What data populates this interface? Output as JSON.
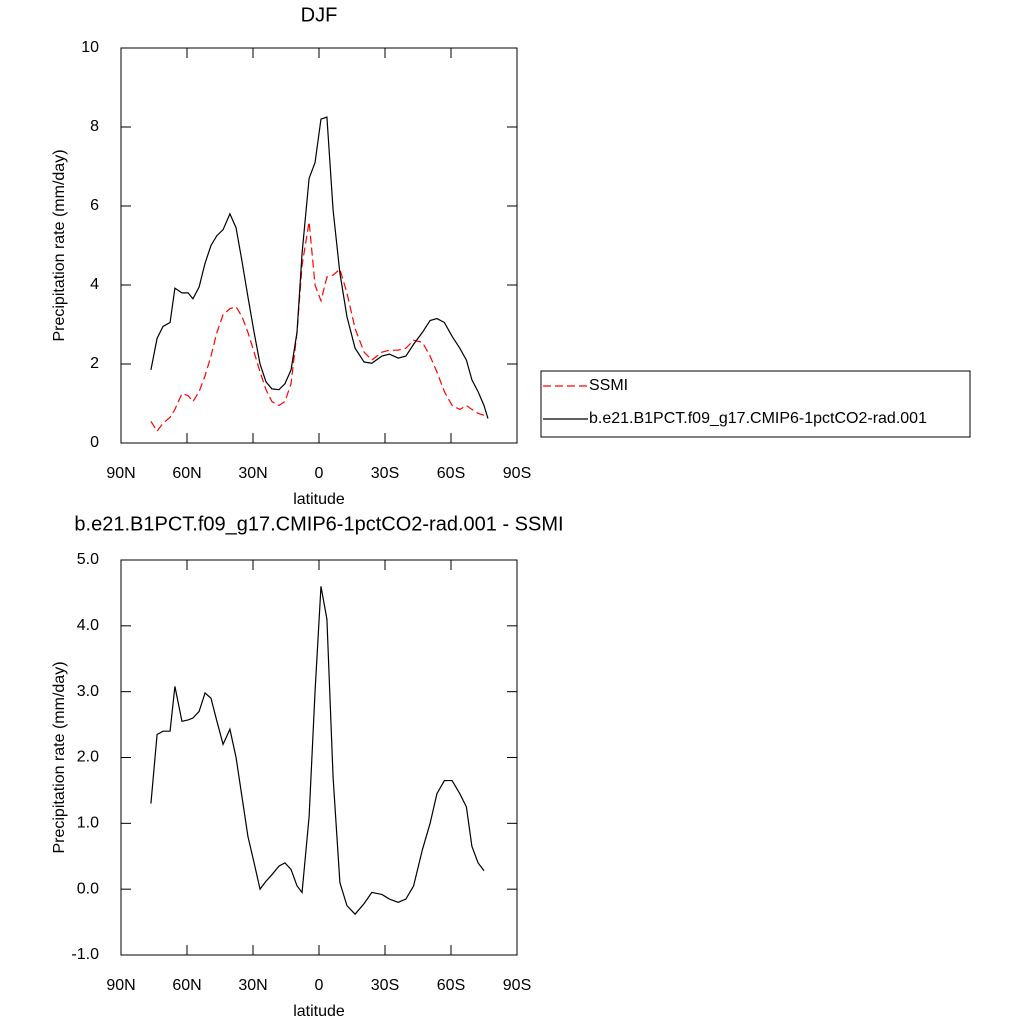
{
  "chart_data": [
    {
      "type": "line",
      "title": "DJF",
      "xlabel": "latitude",
      "ylabel": "Precipitation rate (mm/day)",
      "x": [
        76.4,
        73.6,
        70.9,
        67.7,
        65.5,
        62.3,
        59.5,
        57.3,
        54.5,
        51.8,
        49.1,
        46.4,
        43.6,
        40.5,
        37.7,
        35,
        32.3,
        29.5,
        26.8,
        24.1,
        21.4,
        18.2,
        15.5,
        12.7,
        10,
        7.7,
        4.5,
        1.8,
        -0.9,
        -3.6,
        -6.4,
        -9.5,
        -12.7,
        -16.4,
        -20.5,
        -24,
        -28.6,
        -32,
        -36,
        -39.5,
        -43,
        -47,
        -50.5,
        -53.6,
        -57,
        -60.5,
        -64,
        -67,
        -69.5,
        -72.3,
        -75,
        -76.8
      ],
      "series": [
        {
          "name": "SSMI",
          "color": "#ff0000",
          "line_style": "dashed",
          "values": [
            0.55,
            0.3,
            0.5,
            0.65,
            0.85,
            1.25,
            1.2,
            1.05,
            1.3,
            1.7,
            2.2,
            2.8,
            3.25,
            3.4,
            3.45,
            3.2,
            2.8,
            2.3,
            1.8,
            1.35,
            1.05,
            0.95,
            1.05,
            1.5,
            2.8,
            4.5,
            5.6,
            4.0,
            3.6,
            4.2,
            4.25,
            4.4,
            3.8,
            2.9,
            2.3,
            2.1,
            2.3,
            2.35,
            2.35,
            2.4,
            2.6,
            2.55,
            2.2,
            1.8,
            1.3,
            0.95,
            0.85,
            0.95,
            0.85,
            0.75,
            0.7,
            0.65
          ]
        },
        {
          "name": "b.e21.B1PCT.f09_g17.CMIP6-1pctCO2-rad.001",
          "color": "#000000",
          "line_style": "solid",
          "values": [
            1.85,
            2.65,
            2.95,
            3.05,
            3.92,
            3.8,
            3.8,
            3.65,
            3.95,
            4.55,
            5.0,
            5.25,
            5.4,
            5.8,
            5.45,
            4.6,
            3.7,
            2.8,
            2.0,
            1.55,
            1.37,
            1.35,
            1.5,
            1.85,
            2.8,
            4.8,
            6.7,
            7.1,
            8.2,
            8.25,
            5.9,
            4.3,
            3.2,
            2.4,
            2.05,
            2.02,
            2.2,
            2.25,
            2.15,
            2.2,
            2.5,
            2.8,
            3.1,
            3.15,
            3.05,
            2.7,
            2.4,
            2.1,
            1.6,
            1.3,
            0.95,
            0.62
          ]
        }
      ],
      "xlim": [
        90,
        -90
      ],
      "xticks": [
        {
          "value": 90,
          "label": "90N"
        },
        {
          "value": 60,
          "label": "60N"
        },
        {
          "value": 30,
          "label": "30N"
        },
        0,
        {
          "value": -30,
          "label": "30S"
        },
        {
          "value": -60,
          "label": "60S"
        },
        {
          "value": -90,
          "label": "90S"
        }
      ],
      "ylim": [
        0,
        10
      ],
      "yticks": [
        0,
        2,
        4,
        6,
        8,
        10
      ],
      "grid": false,
      "legend": "outside-right"
    },
    {
      "type": "line",
      "title": "b.e21.B1PCT.f09_g17.CMIP6-1pctCO2-rad.001 - SSMI",
      "xlabel": "latitude",
      "ylabel": "Precipitation rate (mm/day)",
      "x": [
        76.4,
        73.6,
        70.9,
        67.7,
        65.5,
        62.3,
        59.5,
        57.3,
        54.5,
        51.8,
        49.1,
        46.4,
        43.6,
        40.5,
        37.7,
        35,
        32.3,
        29.5,
        26.8,
        24.1,
        21.4,
        18.2,
        15.5,
        12.7,
        10,
        7.7,
        4.5,
        1.8,
        -0.9,
        -3.6,
        -6.4,
        -9.5,
        -12.7,
        -16.4,
        -20.5,
        -24,
        -28.6,
        -32,
        -36,
        -39.5,
        -43,
        -47,
        -50.5,
        -53.6,
        -57,
        -60.5,
        -64,
        -67,
        -69.5,
        -72.3,
        -75,
        -76.8
      ],
      "series": [
        {
          "color": "#000000",
          "line_style": "solid",
          "values": [
            1.3,
            2.35,
            2.4,
            2.4,
            3.08,
            2.55,
            2.57,
            2.6,
            2.7,
            2.98,
            2.9,
            2.55,
            2.2,
            2.43,
            2.0,
            1.4,
            0.8,
            0.4,
            0.0,
            0.12,
            0.22,
            0.35,
            0.4,
            0.3,
            0.05,
            -0.05,
            1.1,
            3.0,
            4.6,
            4.1,
            1.7,
            0.1,
            -0.25,
            -0.38,
            -0.22,
            -0.05,
            -0.08,
            -0.15,
            -0.2,
            -0.15,
            0.05,
            0.6,
            1.0,
            1.45,
            1.65,
            1.65,
            1.45,
            1.25,
            0.65,
            0.4,
            0.28,
            null
          ]
        }
      ],
      "xlim": [
        90,
        -90
      ],
      "xticks": [
        {
          "value": 90,
          "label": "90N"
        },
        {
          "value": 60,
          "label": "60N"
        },
        {
          "value": 30,
          "label": "30N"
        },
        0,
        {
          "value": -30,
          "label": "30S"
        },
        {
          "value": -60,
          "label": "60S"
        },
        {
          "value": -90,
          "label": "90S"
        }
      ],
      "ylim": [
        -1,
        5
      ],
      "yticks": [
        {
          "value": -1,
          "label": "-1.0"
        },
        {
          "value": 0,
          "label": "0.0"
        },
        {
          "value": 1,
          "label": "1.0"
        },
        {
          "value": 2,
          "label": "2.0"
        },
        {
          "value": 3,
          "label": "3.0"
        },
        {
          "value": 4,
          "label": "4.0"
        },
        {
          "value": 5,
          "label": "5.0"
        }
      ],
      "grid": false
    }
  ]
}
